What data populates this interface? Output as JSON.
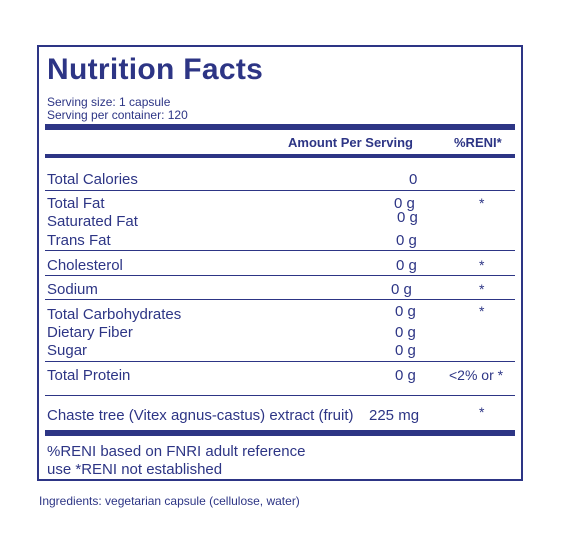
{
  "title": "Nutrition Facts",
  "serving_size": "Serving size:  1 capsule",
  "servings_per_container": "Serving per container:  120",
  "header": {
    "amount_per_serving": "Amount Per Serving",
    "reni": "%RENI*"
  },
  "rows": {
    "calories": {
      "label": "Total Calories",
      "amount": "0",
      "reni": ""
    },
    "total_fat": {
      "label": "Total Fat",
      "amount": "0 g",
      "reni": "*"
    },
    "saturated_fat": {
      "label": "Saturated Fat",
      "amount": "0 g",
      "reni": ""
    },
    "trans_fat": {
      "label": "Trans Fat",
      "amount": "0 g",
      "reni": ""
    },
    "cholesterol": {
      "label": "Cholesterol",
      "amount": "0 g",
      "reni": "*"
    },
    "sodium": {
      "label": "Sodium",
      "amount": "0 g",
      "reni": "*"
    },
    "total_carbs": {
      "label": "Total Carbohydrates",
      "amount": "0 g",
      "reni": "*"
    },
    "dietary_fiber": {
      "label": "Dietary Fiber",
      "amount": "0 g",
      "reni": ""
    },
    "sugar": {
      "label": "Sugar",
      "amount": "0 g",
      "reni": ""
    },
    "protein": {
      "label": "Total Protein",
      "amount": "0 g",
      "reni": "<2% or *"
    },
    "chaste_tree": {
      "label": "Chaste tree (Vitex agnus-castus) extract (fruit)",
      "amount": "225 mg",
      "reni": "*"
    }
  },
  "footnote": {
    "line1": "%RENI based on FNRI adult reference",
    "line2": "use *RENI not established"
  },
  "ingredients": "Ingredients: vegetarian capsule (cellulose, water)",
  "colors": {
    "ink": "#2d3585",
    "background": "#ffffff"
  }
}
